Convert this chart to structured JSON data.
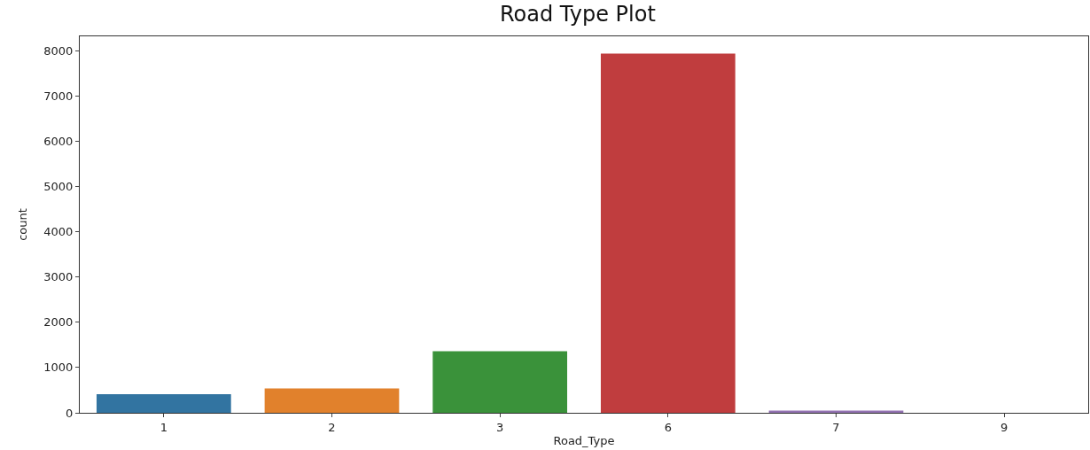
{
  "chart_data": {
    "type": "bar",
    "title": "Road Type Plot",
    "xlabel": "Road_Type",
    "ylabel": "count",
    "categories": [
      "1",
      "2",
      "3",
      "6",
      "7",
      "9"
    ],
    "values": [
      410,
      540,
      1360,
      7940,
      50,
      0
    ],
    "colors": [
      "#3274a1",
      "#e1812c",
      "#3a923a",
      "#c03d3e",
      "#9372b2",
      "#845b53"
    ],
    "ylim": [
      0,
      8320
    ],
    "yticks": [
      0,
      1000,
      2000,
      3000,
      4000,
      5000,
      6000,
      7000,
      8000
    ]
  }
}
